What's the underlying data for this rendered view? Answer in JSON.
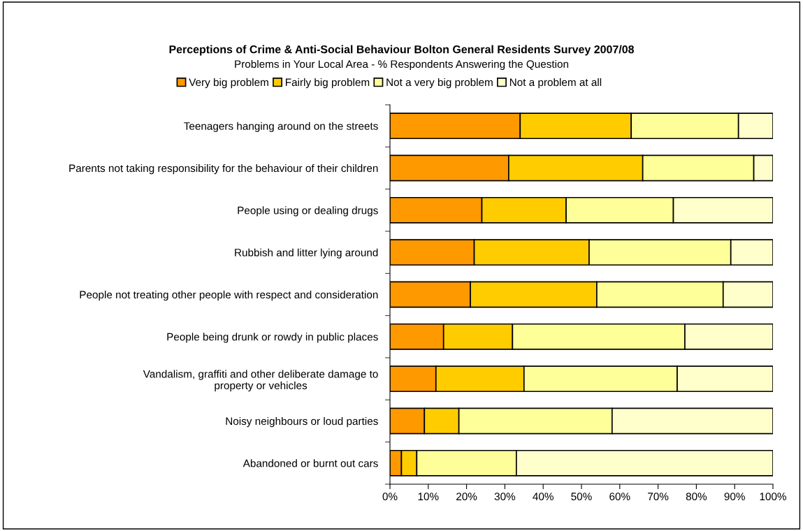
{
  "chart_data": {
    "type": "bar",
    "orientation": "horizontal",
    "stacked": true,
    "title": "Perceptions of Crime & Anti-Social Behaviour Bolton General Residents Survey 2007/08",
    "subtitle": "Problems in Your Local Area - % Respondents Answering the Question",
    "categories": [
      "Teenagers hanging around on the streets",
      "Parents not taking responsibility for the behaviour of their children",
      "People using or dealing drugs",
      "Rubbish and litter lying around",
      "People not treating other people with respect and consideration",
      "People being drunk or rowdy in public places",
      "Vandalism, graffiti and other deliberate damage to property or vehicles",
      "Noisy neighbours or loud parties",
      "Abandoned or burnt out cars"
    ],
    "series": [
      {
        "name": "Very big problem",
        "color": "#ff9900",
        "values": [
          34,
          31,
          24,
          22,
          21,
          14,
          12,
          9,
          3
        ]
      },
      {
        "name": "Fairly big problem",
        "color": "#ffcc00",
        "values": [
          29,
          35,
          22,
          30,
          33,
          18,
          23,
          9,
          4
        ]
      },
      {
        "name": "Not a very big problem",
        "color": "#ffff99",
        "values": [
          28,
          29,
          28,
          37,
          33,
          45,
          40,
          40,
          26
        ]
      },
      {
        "name": "Not a problem at all",
        "color": "#ffffcc",
        "values": [
          9,
          5,
          26,
          11,
          13,
          23,
          25,
          42,
          67
        ]
      }
    ],
    "xlim": [
      0,
      100
    ],
    "xticks": [
      {
        "value": 0,
        "label": "0%"
      },
      {
        "value": 10,
        "label": "10%"
      },
      {
        "value": 20,
        "label": "20%"
      },
      {
        "value": 30,
        "label": "30%"
      },
      {
        "value": 40,
        "label": "40%"
      },
      {
        "value": 50,
        "label": "50%"
      },
      {
        "value": 60,
        "label": "60%"
      },
      {
        "value": 70,
        "label": "70%"
      },
      {
        "value": 80,
        "label": "80%"
      },
      {
        "value": 90,
        "label": "90%"
      },
      {
        "value": 100,
        "label": "100%"
      }
    ],
    "legend": "top",
    "grid": false
  }
}
